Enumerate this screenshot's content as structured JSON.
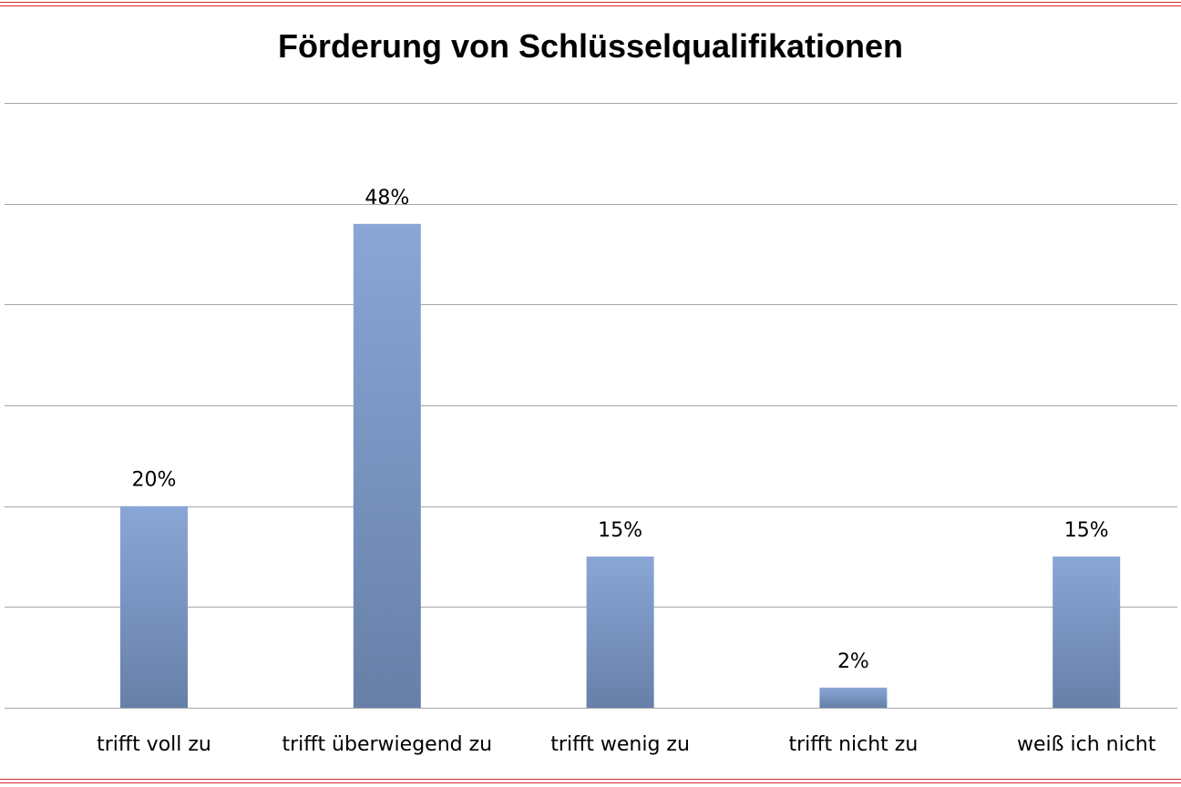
{
  "chart_data": {
    "type": "bar",
    "title": "Förderung von Schlüsselqualifikationen",
    "categories": [
      "trifft voll zu",
      "trifft überwiegend  zu",
      "trifft wenig  zu",
      "trifft nicht  zu",
      "weiß ich nicht"
    ],
    "values": [
      20,
      48,
      15,
      2,
      15
    ],
    "data_labels": [
      "20%",
      "48%",
      "15%",
      "2%",
      "15%"
    ],
    "unit": "%",
    "ylim": [
      0,
      60
    ],
    "y_gridlines": [
      0,
      10,
      20,
      30,
      40,
      50,
      60
    ],
    "grid": true,
    "legend": "none",
    "colors": {
      "bar_top": "#8aa6d6",
      "bar_bottom": "#6680a8",
      "gridline": "#a6a6a6",
      "frame": "#d9252b"
    }
  }
}
